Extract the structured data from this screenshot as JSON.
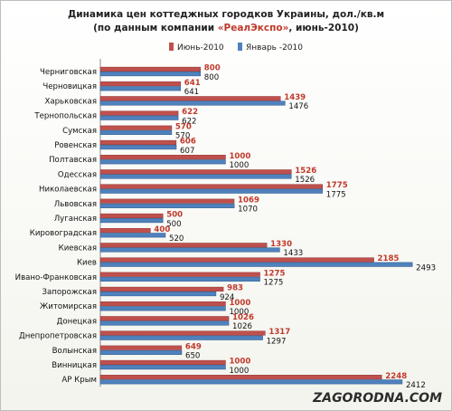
{
  "chart_data": {
    "type": "bar",
    "orientation": "horizontal",
    "title_line1": "Динамика цен коттеджных городков Украины, дол./кв.м",
    "title_line2_prefix": "(по данным компании ",
    "title_line2_accent": "«РеалЭкспо»",
    "title_line2_suffix": ", июнь-2010)",
    "categories": [
      "Черниговская",
      "Черновицкая",
      "Харьковская",
      "Тернопольская",
      "Сумская",
      "Ровенская",
      "Полтавская",
      "Одесская",
      "Николаевская",
      "Львовская",
      "Луганская",
      "Кировоградская",
      "Киевская",
      "Киев",
      "Ивано-Франковская",
      "Запорожская",
      "Житомирская",
      "Донецкая",
      "Днепропетровская",
      "Волынская",
      "Винницкая",
      "АР Крым"
    ],
    "series": [
      {
        "name": "Июнь-2010",
        "color": "#c0504d",
        "values": [
          800,
          641,
          1439,
          622,
          570,
          606,
          1000,
          1526,
          1775,
          1069,
          500,
          400,
          1330,
          2185,
          1275,
          983,
          1000,
          1026,
          1317,
          649,
          1000,
          2248
        ]
      },
      {
        "name": "Январь -2010",
        "color": "#4f81bd",
        "values": [
          800,
          641,
          1476,
          622,
          570,
          607,
          1000,
          1526,
          1775,
          1070,
          500,
          520,
          1433,
          2493,
          1275,
          924,
          1000,
          1026,
          1297,
          650,
          1000,
          2412
        ]
      }
    ],
    "xlim": [
      0,
      2600
    ],
    "grid": false,
    "legend_position": "top"
  },
  "watermark": "ZAGORODNA.COM"
}
